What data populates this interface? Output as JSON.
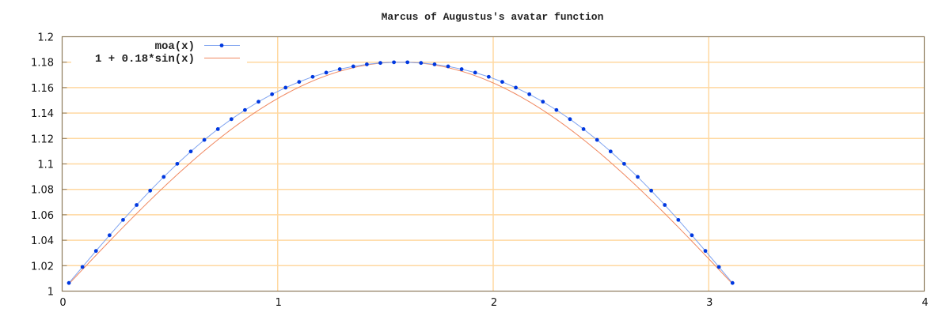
{
  "chart_data": {
    "type": "line",
    "title": "Marcus of Augustus's avatar function",
    "xlabel": "",
    "ylabel": "",
    "xlim": [
      0,
      4
    ],
    "ylim": [
      1,
      1.2
    ],
    "x_ticks": [
      "0",
      "1",
      "2",
      "3",
      "4"
    ],
    "y_ticks": [
      "1",
      "1.02",
      "1.04",
      "1.06",
      "1.08",
      "1.1",
      "1.12",
      "1.14",
      "1.16",
      "1.18",
      "1.2"
    ],
    "grid": true,
    "legend_position": "top-left",
    "colors": {
      "grid": "#ffd8a0",
      "frame": "#8c7a5c",
      "moa_line": "#7fa3f0",
      "moa_point": "#0038e0",
      "sin_line": "#f08860"
    },
    "series": [
      {
        "name": "moa(x)",
        "style": "linespoints",
        "x": [
          0.0314,
          0.0942,
          0.1571,
          0.2199,
          0.2827,
          0.3456,
          0.4084,
          0.4712,
          0.5341,
          0.5969,
          0.6597,
          0.7226,
          0.7854,
          0.8482,
          0.9111,
          0.9739,
          1.0367,
          1.0996,
          1.1624,
          1.2252,
          1.2881,
          1.3509,
          1.4137,
          1.4765,
          1.5394,
          1.6022,
          1.665,
          1.7279,
          1.7907,
          1.8535,
          1.9164,
          1.9792,
          2.042,
          2.1049,
          2.1677,
          2.2305,
          2.2934,
          2.3562,
          2.419,
          2.4819,
          2.5447,
          2.6075,
          2.6704,
          2.7332,
          2.796,
          2.8588,
          2.9217,
          2.9845,
          3.0473,
          3.1102
        ],
        "y": [
          1.0064,
          1.019,
          1.0316,
          1.0439,
          1.056,
          1.0677,
          1.079,
          1.0898,
          1.1001,
          1.1098,
          1.1189,
          1.1274,
          1.1352,
          1.1424,
          1.1489,
          1.1548,
          1.16,
          1.1645,
          1.1685,
          1.1718,
          1.1745,
          1.1767,
          1.1783,
          1.1794,
          1.1799,
          1.1799,
          1.1794,
          1.1783,
          1.1767,
          1.1745,
          1.1718,
          1.1685,
          1.1645,
          1.16,
          1.1548,
          1.1489,
          1.1424,
          1.1352,
          1.1274,
          1.1189,
          1.1098,
          1.1001,
          1.0898,
          1.079,
          1.0677,
          1.056,
          1.0439,
          1.0316,
          1.019,
          1.0064
        ]
      },
      {
        "name": "1 + 0.18*sin(x)",
        "style": "lines",
        "function": {
          "offset": 1,
          "amplitude": 0.18,
          "x_from": 0.0314,
          "x_to": 3.1102
        }
      }
    ]
  }
}
